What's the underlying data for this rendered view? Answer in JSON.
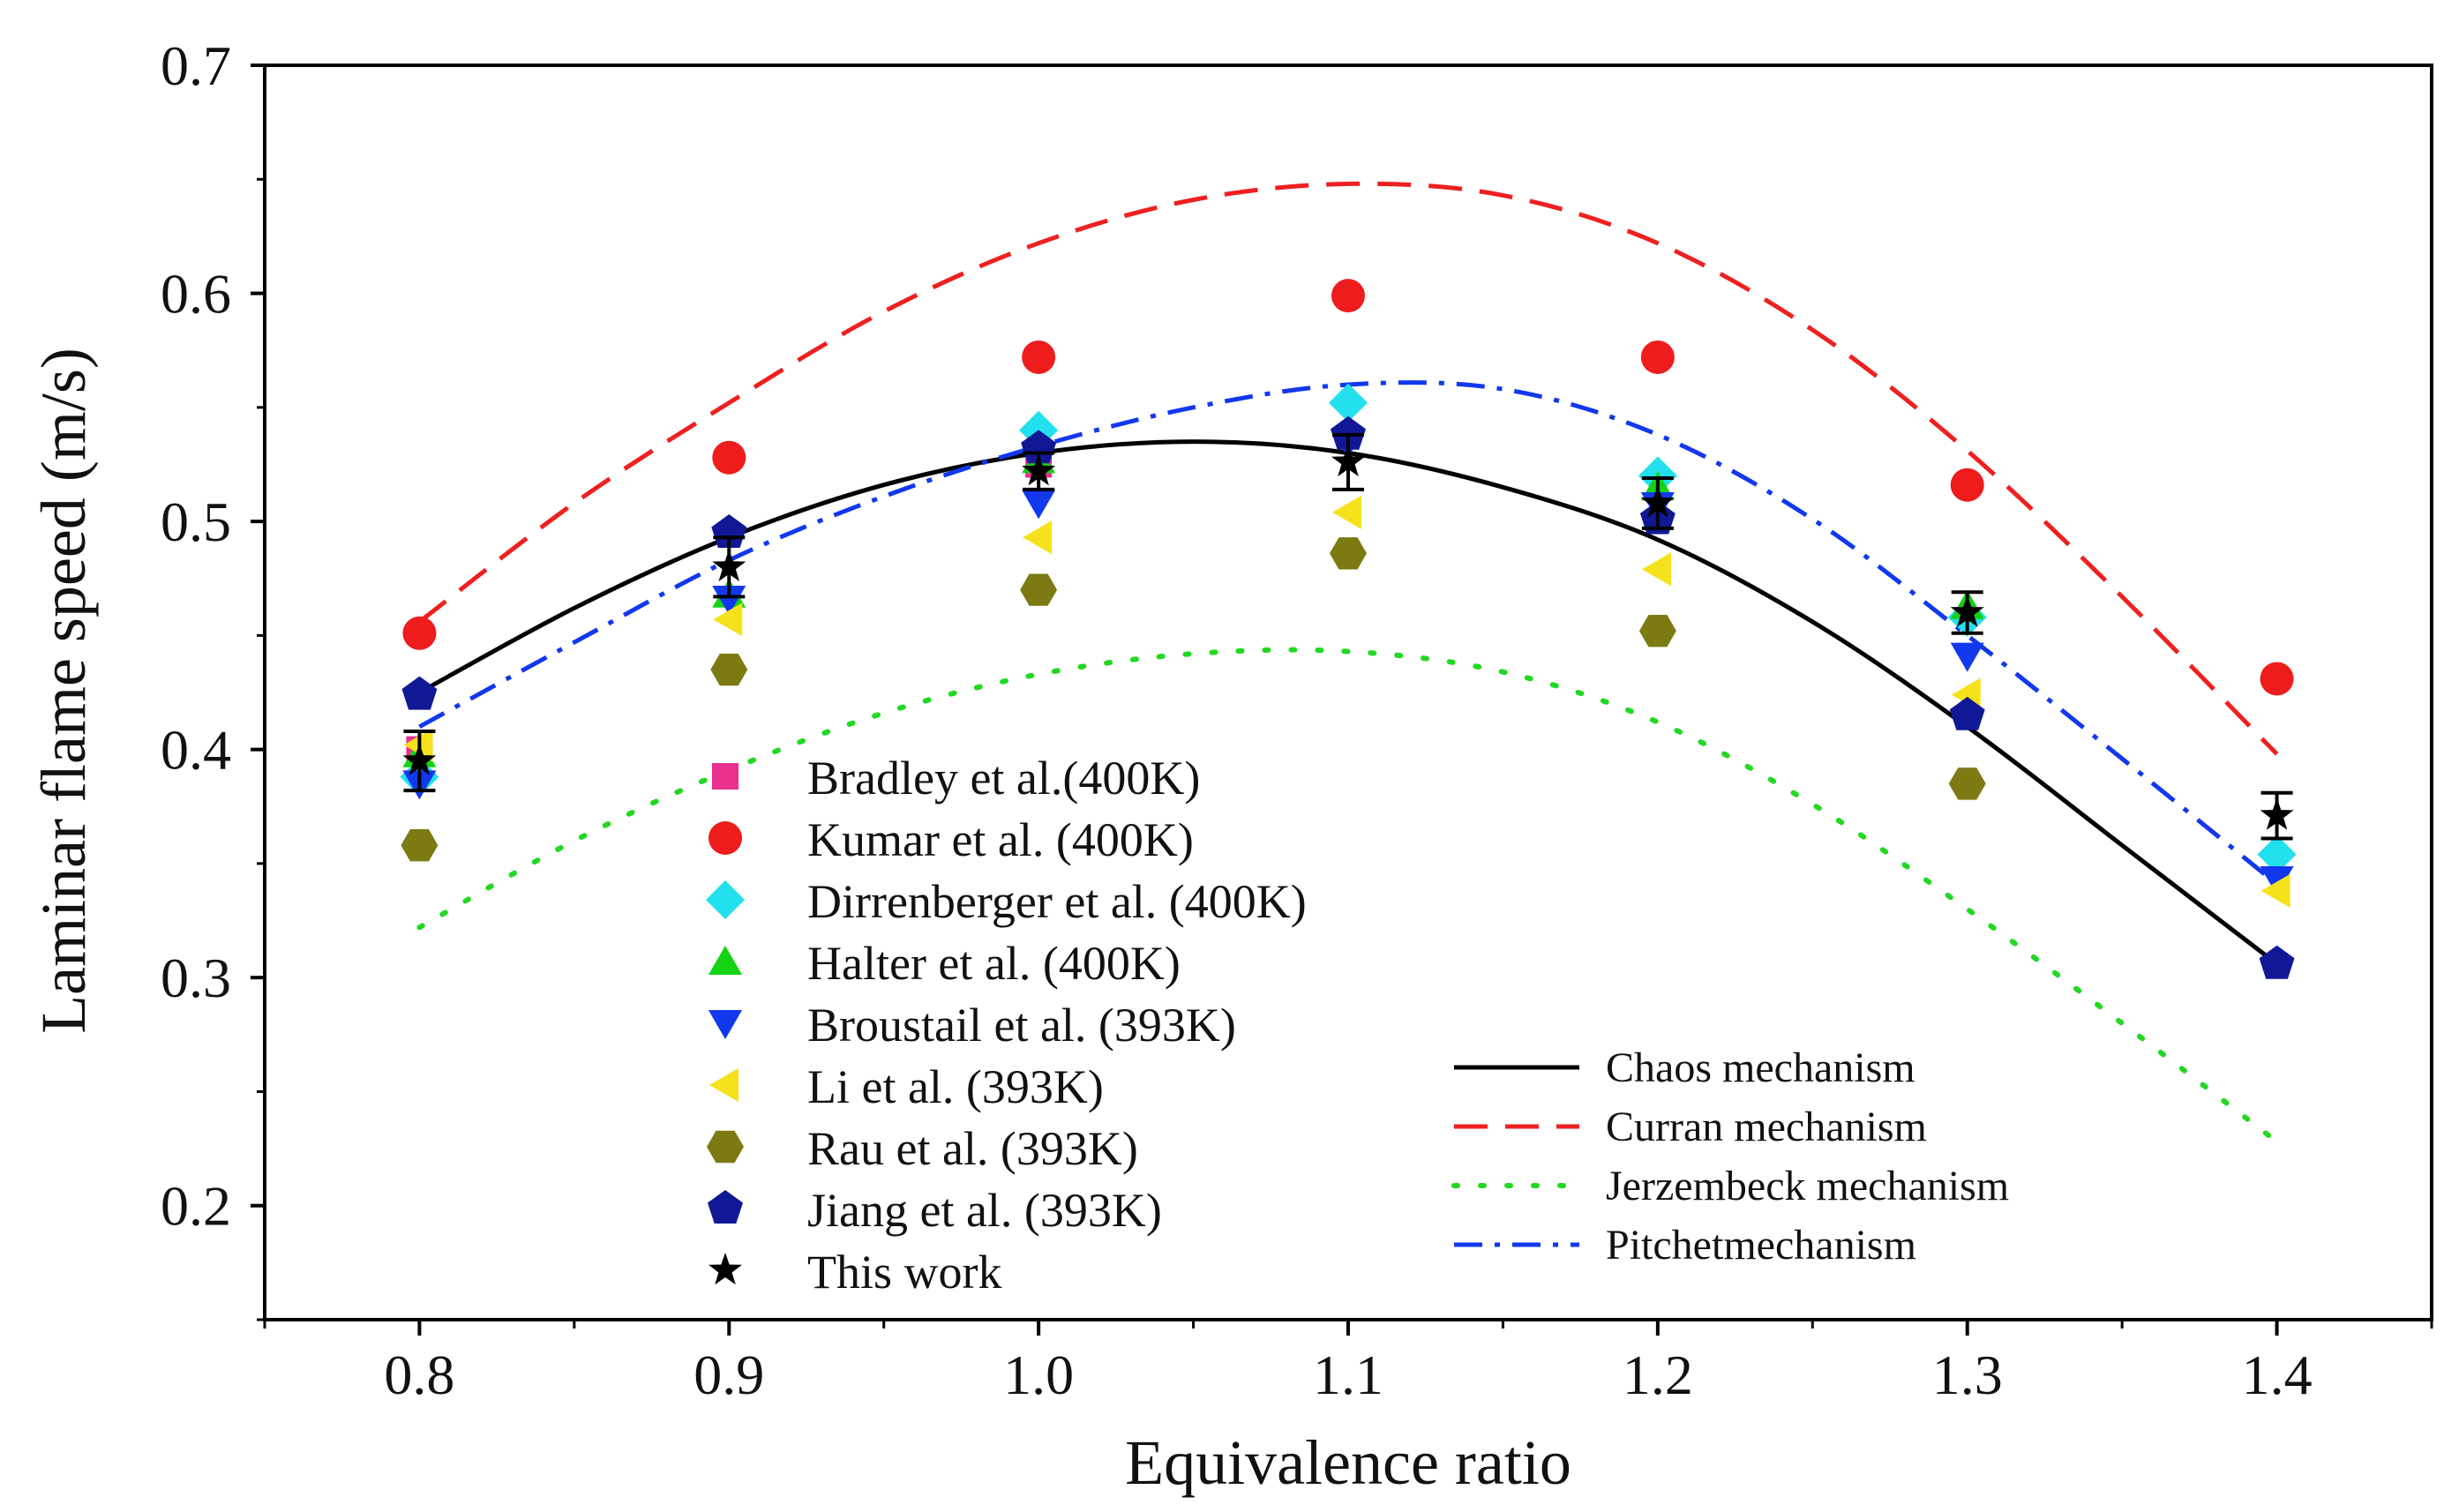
{
  "chart_data": {
    "type": "scatter",
    "xlabel": "Equivalence ratio",
    "ylabel": "Laminar flame speed (m/s)",
    "xlim": [
      0.75,
      1.45
    ],
    "ylim": [
      0.15,
      0.7
    ],
    "xticks": [
      0.8,
      0.9,
      1.0,
      1.1,
      1.2,
      1.3,
      1.4
    ],
    "xtick_labels": [
      "0.8",
      "0.9",
      "1.0",
      "1.1",
      "1.2",
      "1.3",
      "1.4"
    ],
    "yticks": [
      0.2,
      0.3,
      0.4,
      0.5,
      0.6,
      0.7
    ],
    "ytick_labels": [
      "0.2",
      "0.3",
      "0.4",
      "0.5",
      "0.6",
      "0.7"
    ],
    "grid": false,
    "legend_placement": "bottom-left (markers), bottom-right (lines)",
    "series": [
      {
        "name": "Bradley et al.(400K)",
        "marker": "square",
        "color": "#e8308c",
        "x": [
          0.8,
          1.0
        ],
        "y": [
          0.4,
          0.525
        ]
      },
      {
        "name": "Kumar et al. (400K)",
        "marker": "circle",
        "color": "#ee1c1c",
        "x": [
          0.8,
          0.9,
          1.0,
          1.1,
          1.2,
          1.3,
          1.4
        ],
        "y": [
          0.451,
          0.528,
          0.572,
          0.599,
          0.572,
          0.516,
          0.431
        ]
      },
      {
        "name": "Dirrenberger et al. (400K)",
        "marker": "diamond",
        "color": "#22e0ee",
        "x": [
          0.8,
          1.0,
          1.1,
          1.2,
          1.3,
          1.4
        ],
        "y": [
          0.388,
          0.54,
          0.552,
          0.52,
          0.458,
          0.354
        ]
      },
      {
        "name": "Halter et al. (400K)",
        "marker": "triangle-up",
        "color": "#14d214",
        "x": [
          0.8,
          0.9,
          1.0,
          1.2,
          1.3
        ],
        "y": [
          0.398,
          0.468,
          0.527,
          0.515,
          0.463
        ]
      },
      {
        "name": "Broustail et al. (393K)",
        "marker": "triangle-down",
        "color": "#1238ee",
        "x": [
          0.8,
          0.9,
          1.0,
          1.1,
          1.2,
          1.3,
          1.4
        ],
        "y": [
          0.385,
          0.466,
          0.508,
          0.535,
          0.507,
          0.441,
          0.343
        ]
      },
      {
        "name": "Li et al. (393K)",
        "marker": "triangle-left",
        "color": "#f6e21c",
        "x": [
          0.8,
          0.9,
          1.0,
          1.1,
          1.2,
          1.3,
          1.4
        ],
        "y": [
          0.402,
          0.457,
          0.493,
          0.504,
          0.479,
          0.424,
          0.338
        ]
      },
      {
        "name": "Rau et al. (393K)",
        "marker": "hexagon",
        "color": "#7c7a12",
        "x": [
          0.8,
          0.9,
          1.0,
          1.1,
          1.2,
          1.3
        ],
        "y": [
          0.358,
          0.435,
          0.47,
          0.486,
          0.452,
          0.385
        ]
      },
      {
        "name": "Jiang et al. (393K)",
        "marker": "pentagon",
        "color": "#101896",
        "x": [
          0.8,
          0.9,
          1.0,
          1.1,
          1.2,
          1.3,
          1.4
        ],
        "y": [
          0.424,
          0.495,
          0.532,
          0.538,
          0.501,
          0.415,
          0.306
        ]
      },
      {
        "name": "This work",
        "marker": "star",
        "color": "#000000",
        "x": [
          0.8,
          0.9,
          1.0,
          1.1,
          1.2,
          1.3,
          1.4
        ],
        "y": [
          0.395,
          0.48,
          0.522,
          0.526,
          0.508,
          0.46,
          0.371
        ],
        "error": [
          0.013,
          0.013,
          0.008,
          0.012,
          0.011,
          0.009,
          0.01
        ]
      }
    ],
    "curves": [
      {
        "name": "Chaos mechanism",
        "style": "solid",
        "color": "#000000",
        "x": [
          0.8,
          0.85,
          0.9,
          0.95,
          1.0,
          1.05,
          1.1,
          1.15,
          1.2,
          1.25,
          1.3,
          1.35,
          1.4
        ],
        "y": [
          0.425,
          0.462,
          0.493,
          0.516,
          0.53,
          0.535,
          0.53,
          0.515,
          0.492,
          0.456,
          0.41,
          0.358,
          0.306
        ]
      },
      {
        "name": "Curran mechanism",
        "style": "dashed",
        "color": "#ee2020",
        "x": [
          0.8,
          0.85,
          0.9,
          0.95,
          1.0,
          1.05,
          1.1,
          1.15,
          1.2,
          1.25,
          1.3,
          1.35,
          1.4
        ],
        "y": [
          0.456,
          0.508,
          0.552,
          0.592,
          0.622,
          0.641,
          0.648,
          0.643,
          0.622,
          0.584,
          0.531,
          0.467,
          0.398
        ]
      },
      {
        "name": "Jerzembeck mechanism",
        "style": "dotted",
        "color": "#22d822",
        "x": [
          0.8,
          0.85,
          0.9,
          0.95,
          1.0,
          1.05,
          1.1,
          1.15,
          1.2,
          1.25,
          1.3,
          1.35,
          1.4
        ],
        "y": [
          0.322,
          0.36,
          0.391,
          0.416,
          0.433,
          0.442,
          0.443,
          0.434,
          0.412,
          0.376,
          0.33,
          0.28,
          0.228
        ]
      },
      {
        "name": "Pitchetmechanism",
        "style": "dashdot",
        "color": "#1238ee",
        "x": [
          0.8,
          0.85,
          0.9,
          0.95,
          1.0,
          1.05,
          1.1,
          1.15,
          1.2,
          1.25,
          1.3,
          1.35,
          1.4
        ],
        "y": [
          0.41,
          0.447,
          0.483,
          0.511,
          0.533,
          0.55,
          0.56,
          0.558,
          0.538,
          0.501,
          0.45,
          0.396,
          0.341
        ]
      }
    ]
  }
}
